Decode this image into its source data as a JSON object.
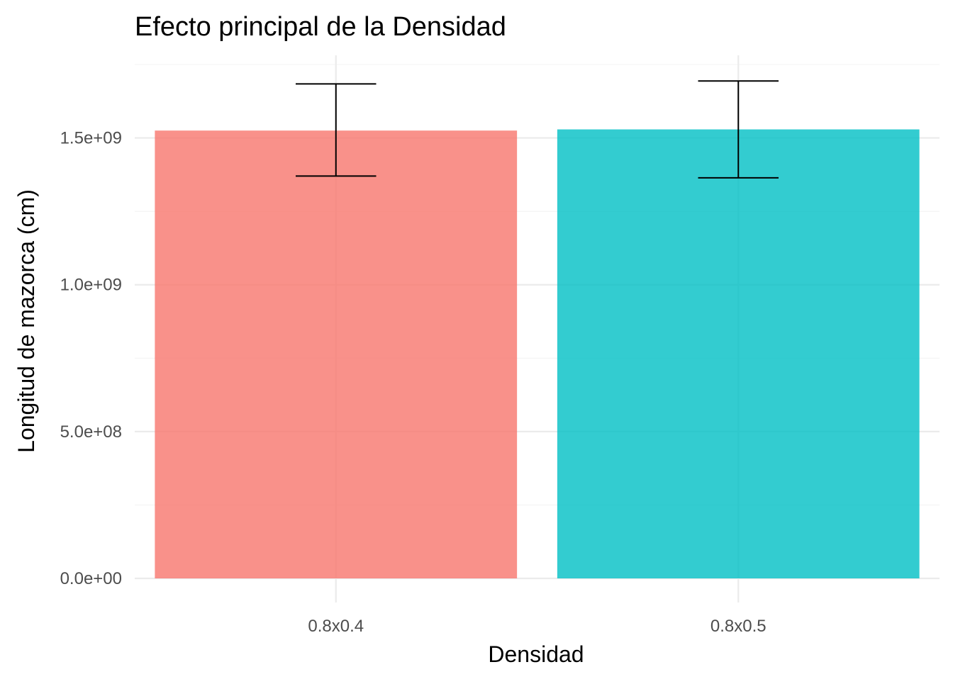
{
  "chart_data": {
    "type": "bar",
    "title": "Efecto principal de la Densidad",
    "xlabel": "Densidad",
    "ylabel": "Longitud de mazorca (cm)",
    "categories": [
      "0.8x0.4",
      "0.8x0.5"
    ],
    "values": [
      1525000000,
      1529000000
    ],
    "error_low": [
      1370000000,
      1364000000
    ],
    "error_high": [
      1684000000,
      1694000000
    ],
    "colors": [
      "#F8766D",
      "#00BFC4"
    ],
    "bar_opacity": 0.8,
    "ylim": [
      0,
      1750000000
    ],
    "yticks": [
      0,
      500000000,
      1000000000,
      1500000000
    ],
    "ytick_labels": [
      "0.0e+00",
      "5.0e+08",
      "1.0e+09",
      "1.5e+09"
    ],
    "grid": true,
    "legend": "none"
  }
}
